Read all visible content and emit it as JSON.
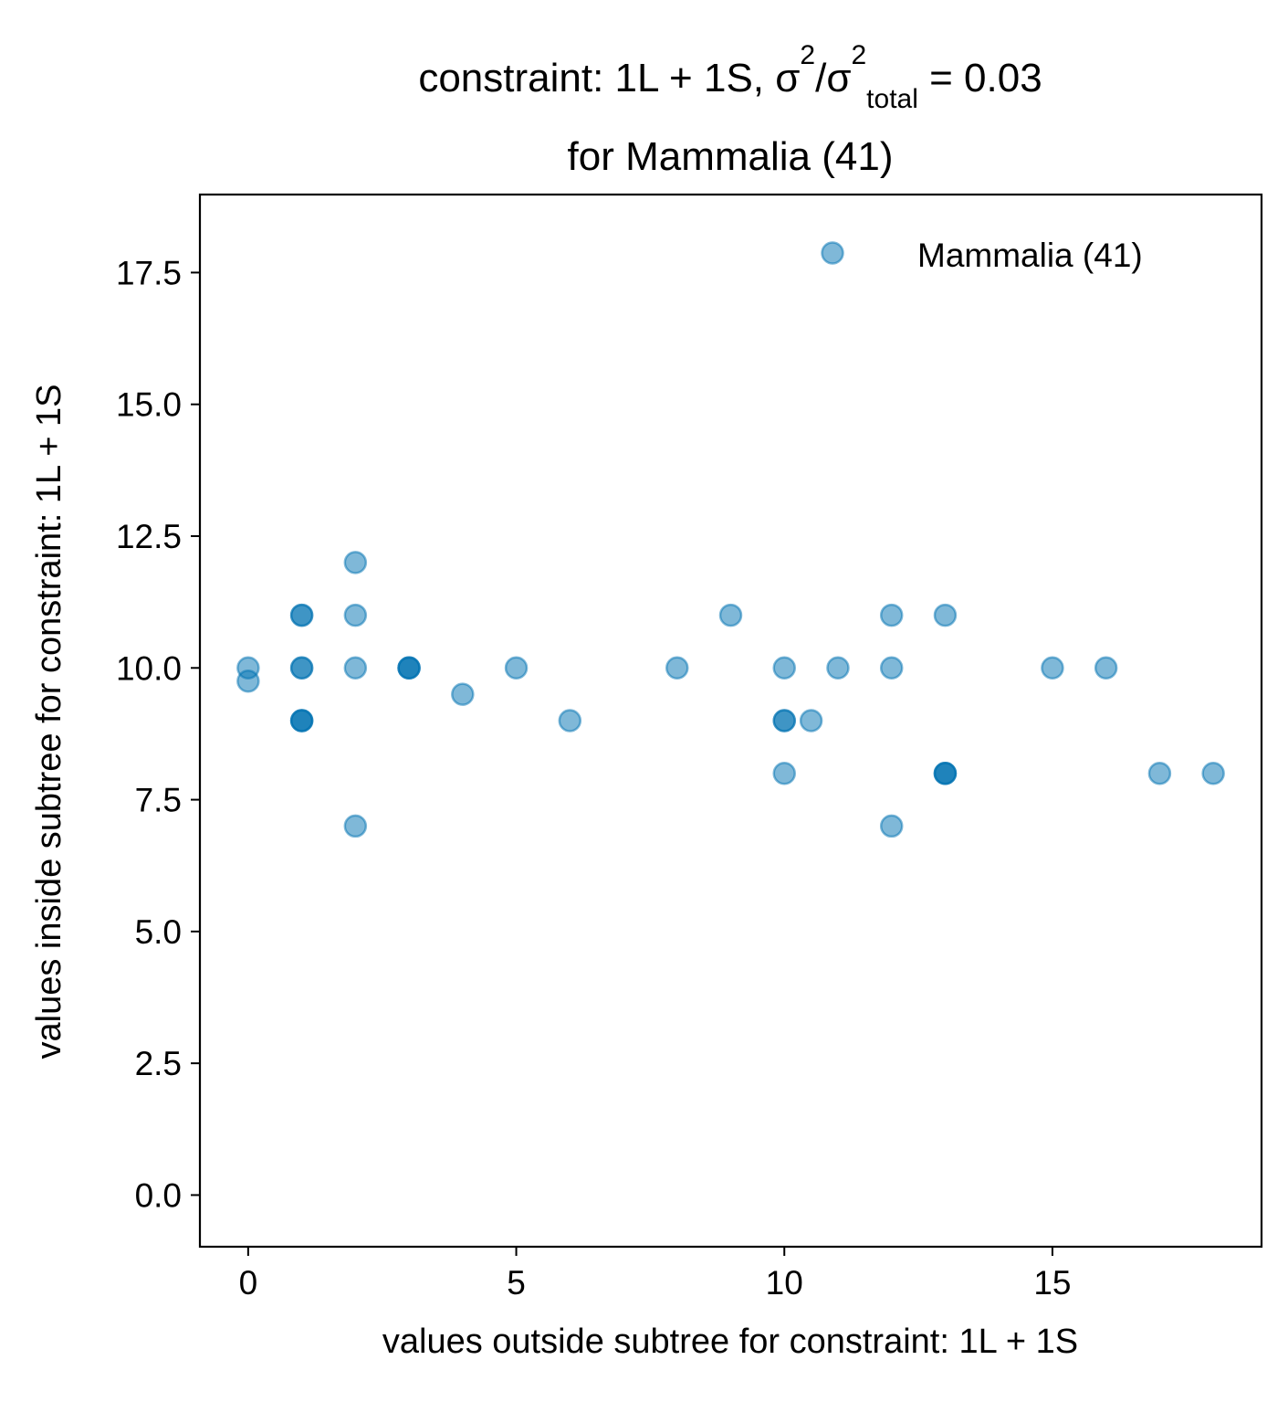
{
  "chart_data": {
    "type": "scatter",
    "title": {
      "prefix": "constraint: 1L + 1S, σ",
      "sup1": "2",
      "mid": "/σ",
      "sup2": "2",
      "sub": "total",
      "suffix": " =  0.03",
      "line2": "for Mammalia (41)"
    },
    "xlabel": "values outside subtree for constraint: 1L + 1S",
    "ylabel": "values inside subtree for constraint: 1L + 1S",
    "xlim": [
      -0.9,
      18.9
    ],
    "ylim": [
      -0.98,
      18.98
    ],
    "xticks": [
      0,
      5,
      10,
      15
    ],
    "xtick_labels": [
      "0",
      "5",
      "10",
      "15"
    ],
    "yticks": [
      0,
      2.5,
      5,
      7.5,
      10,
      12.5,
      15,
      17.5
    ],
    "ytick_labels": [
      "0.0",
      "2.5",
      "5.0",
      "7.5",
      "10.0",
      "12.5",
      "15.0",
      "17.5"
    ],
    "grid": false,
    "legend_position": "top-right",
    "series": [
      {
        "name": "Mammalia (41)",
        "color": "#0072b2",
        "alpha": 0.5,
        "points": [
          [
            0,
            10
          ],
          [
            0,
            9.75
          ],
          [
            1,
            11
          ],
          [
            1,
            11
          ],
          [
            1,
            10
          ],
          [
            1,
            10
          ],
          [
            1,
            9
          ],
          [
            1,
            9
          ],
          [
            1,
            9
          ],
          [
            2,
            12
          ],
          [
            2,
            11
          ],
          [
            2,
            10
          ],
          [
            2,
            7
          ],
          [
            3,
            10
          ],
          [
            3,
            10
          ],
          [
            3,
            10
          ],
          [
            4,
            9.5
          ],
          [
            5,
            10
          ],
          [
            6,
            9
          ],
          [
            8,
            10
          ],
          [
            9,
            11
          ],
          [
            10,
            10
          ],
          [
            10,
            9
          ],
          [
            10,
            9
          ],
          [
            10,
            8
          ],
          [
            10.5,
            9
          ],
          [
            11,
            10
          ],
          [
            12,
            11
          ],
          [
            12,
            10
          ],
          [
            12,
            7
          ],
          [
            13,
            11
          ],
          [
            13,
            8
          ],
          [
            13,
            8
          ],
          [
            13,
            8
          ],
          [
            15,
            10
          ],
          [
            16,
            10
          ],
          [
            17,
            8
          ],
          [
            18,
            8
          ]
        ]
      }
    ]
  }
}
